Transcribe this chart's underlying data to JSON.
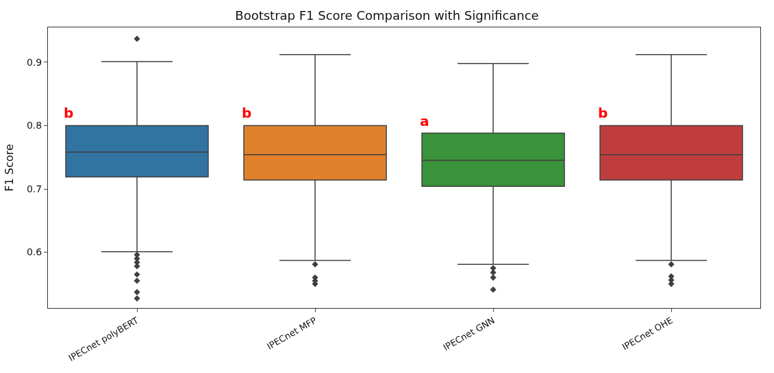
{
  "chart_data": {
    "type": "box",
    "title": "Bootstrap F1 Score Comparison with Significance",
    "ylabel": "F1 Score",
    "categories": [
      "IPECnet polyBERT",
      "IPECnet MFP",
      "IPECnet GNN",
      "IPECnet OHE"
    ],
    "colors": [
      "#3274a1",
      "#e1812c",
      "#3a923a",
      "#c03d3e"
    ],
    "boxes": [
      {
        "low": 0.601,
        "q1": 0.719,
        "median": 0.758,
        "q3": 0.8,
        "high": 0.901,
        "outliers": [
          0.937,
          0.596,
          0.59,
          0.584,
          0.578,
          0.565,
          0.555,
          0.537,
          0.527
        ]
      },
      {
        "low": 0.587,
        "q1": 0.714,
        "median": 0.754,
        "q3": 0.8,
        "high": 0.912,
        "outliers": [
          0.581,
          0.56,
          0.555,
          0.55
        ]
      },
      {
        "low": 0.581,
        "q1": 0.704,
        "median": 0.745,
        "q3": 0.788,
        "high": 0.898,
        "outliers": [
          0.575,
          0.568,
          0.56,
          0.541
        ]
      },
      {
        "low": 0.587,
        "q1": 0.714,
        "median": 0.754,
        "q3": 0.8,
        "high": 0.912,
        "outliers": [
          0.581,
          0.562,
          0.556,
          0.55
        ]
      }
    ],
    "annotations": [
      "b",
      "b",
      "a",
      "b"
    ],
    "ylim": [
      0.512,
      0.955
    ],
    "yticks": [
      0.6,
      0.7,
      0.8,
      0.9
    ]
  }
}
